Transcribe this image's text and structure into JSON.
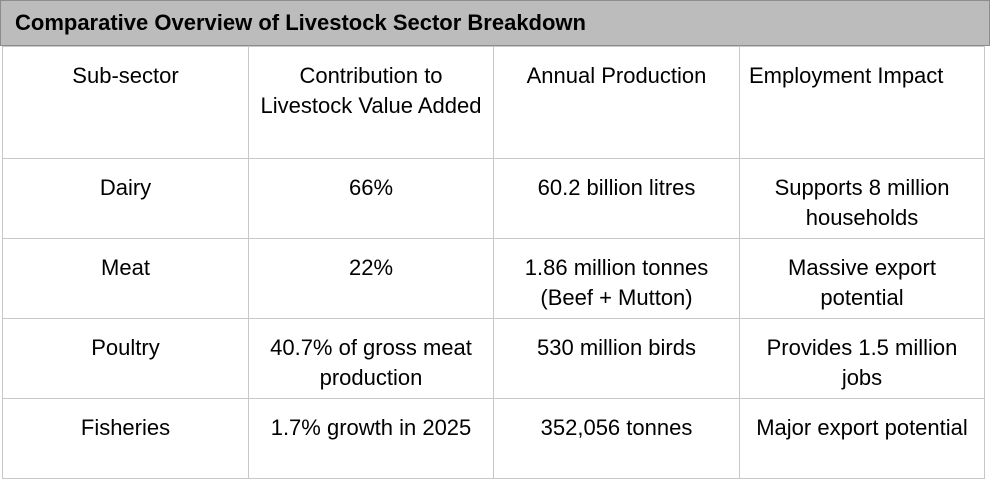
{
  "title": "Comparative Overview of Livestock Sector Breakdown",
  "table": {
    "headers": [
      "Sub-sector",
      "Contribution to Livestock Value Added",
      "Annual Production",
      "Employment Impact"
    ],
    "rows": [
      [
        "Dairy",
        "66%",
        "60.2 billion litres",
        "Supports 8 million households"
      ],
      [
        "Meat",
        "22%",
        "1.86 million tonnes (Beef + Mutton)",
        "Massive export potential"
      ],
      [
        "Poultry",
        "40.7% of gross meat production",
        "530 million birds",
        "Provides 1.5 million jobs"
      ],
      [
        "Fisheries",
        "1.7% growth in 2025",
        "352,056 tonnes",
        "Major export potential"
      ]
    ]
  }
}
